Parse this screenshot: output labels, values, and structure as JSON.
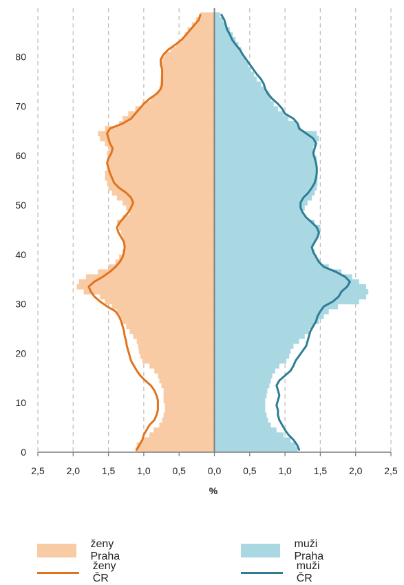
{
  "chart_data": {
    "type": "population-pyramid",
    "xlabel": "%",
    "x_ticks": [
      "2,5",
      "2,0",
      "1,5",
      "1,0",
      "0,5",
      "0,0",
      "0,5",
      "1,0",
      "1,5",
      "2,0",
      "2,5"
    ],
    "y_ticks": [
      "0",
      "10",
      "20",
      "30",
      "40",
      "50",
      "60",
      "70",
      "80"
    ],
    "xlim": [
      -2.5,
      2.5
    ],
    "ylim": [
      0,
      89
    ],
    "grid": "vertical dashed",
    "legend_position": "bottom",
    "colors": {
      "zeny_praha": "#f9cba5",
      "muzi_praha": "#a9d8e3",
      "zeny_cr": "#e0741e",
      "muzi_cr": "#2d7e94",
      "axis": "#7f7f7f",
      "grid": "#bfbfbf"
    },
    "series": [
      {
        "name": "ženy Praha",
        "kind": "bars",
        "side": "left",
        "age": [
          0,
          1,
          2,
          3,
          4,
          5,
          6,
          7,
          8,
          9,
          10,
          11,
          12,
          13,
          14,
          15,
          16,
          17,
          18,
          19,
          20,
          21,
          22,
          23,
          24,
          25,
          26,
          27,
          28,
          29,
          30,
          31,
          32,
          33,
          34,
          35,
          36,
          37,
          38,
          39,
          40,
          41,
          42,
          43,
          44,
          45,
          46,
          47,
          48,
          49,
          50,
          51,
          52,
          53,
          54,
          55,
          56,
          57,
          58,
          59,
          60,
          61,
          62,
          63,
          64,
          65,
          66,
          67,
          68,
          69,
          70,
          71,
          72,
          73,
          74,
          75,
          76,
          77,
          78,
          79,
          80,
          81,
          82,
          83,
          84,
          85,
          86,
          87,
          88
        ],
        "values": [
          1.12,
          1.1,
          1.02,
          0.92,
          0.86,
          0.78,
          0.74,
          0.72,
          0.7,
          0.7,
          0.72,
          0.72,
          0.72,
          0.75,
          0.78,
          0.8,
          0.85,
          0.92,
          1.02,
          1.05,
          1.07,
          1.08,
          1.1,
          1.15,
          1.2,
          1.25,
          1.3,
          1.33,
          1.38,
          1.45,
          1.55,
          1.62,
          1.85,
          1.95,
          1.92,
          1.82,
          1.65,
          1.5,
          1.4,
          1.35,
          1.3,
          1.28,
          1.28,
          1.3,
          1.32,
          1.35,
          1.38,
          1.3,
          1.2,
          1.25,
          1.3,
          1.38,
          1.45,
          1.5,
          1.52,
          1.55,
          1.55,
          1.52,
          1.52,
          1.5,
          1.52,
          1.5,
          1.55,
          1.62,
          1.65,
          1.55,
          1.35,
          1.3,
          1.22,
          1.12,
          1.02,
          0.9,
          0.82,
          0.78,
          0.77,
          0.76,
          0.75,
          0.75,
          0.76,
          0.74,
          0.7,
          0.62,
          0.54,
          0.46,
          0.42,
          0.38,
          0.32,
          0.26,
          0.2
        ]
      },
      {
        "name": "muži Praha",
        "kind": "bars",
        "side": "right",
        "age": [
          0,
          1,
          2,
          3,
          4,
          5,
          6,
          7,
          8,
          9,
          10,
          11,
          12,
          13,
          14,
          15,
          16,
          17,
          18,
          19,
          20,
          21,
          22,
          23,
          24,
          25,
          26,
          27,
          28,
          29,
          30,
          31,
          32,
          33,
          34,
          35,
          36,
          37,
          38,
          39,
          40,
          41,
          42,
          43,
          44,
          45,
          46,
          47,
          48,
          49,
          50,
          51,
          52,
          53,
          54,
          55,
          56,
          57,
          58,
          59,
          60,
          61,
          62,
          63,
          64,
          65,
          66,
          67,
          68,
          69,
          70,
          71,
          72,
          73,
          74,
          75,
          76,
          77,
          78,
          79,
          80,
          81,
          82,
          83,
          84,
          85,
          86,
          87,
          88
        ],
        "values": [
          1.18,
          1.15,
          1.08,
          0.98,
          0.88,
          0.8,
          0.76,
          0.74,
          0.72,
          0.72,
          0.72,
          0.74,
          0.75,
          0.78,
          0.8,
          0.82,
          0.86,
          0.92,
          1.02,
          1.06,
          1.08,
          1.12,
          1.2,
          1.28,
          1.34,
          1.4,
          1.48,
          1.55,
          1.62,
          1.75,
          2.05,
          2.15,
          2.18,
          2.15,
          2.05,
          1.95,
          1.8,
          1.62,
          1.5,
          1.45,
          1.42,
          1.4,
          1.42,
          1.45,
          1.5,
          1.5,
          1.42,
          1.3,
          1.25,
          1.28,
          1.32,
          1.38,
          1.42,
          1.45,
          1.46,
          1.46,
          1.45,
          1.45,
          1.44,
          1.45,
          1.42,
          1.4,
          1.45,
          1.48,
          1.45,
          1.22,
          1.18,
          1.05,
          0.98,
          0.9,
          0.84,
          0.8,
          0.78,
          0.72,
          0.66,
          0.6,
          0.56,
          0.52,
          0.48,
          0.44,
          0.4,
          0.38,
          0.34,
          0.3,
          0.26,
          0.22,
          0.17,
          0.12,
          0.08
        ]
      },
      {
        "name": "ženy ČR",
        "kind": "line",
        "side": "left",
        "points": [
          [
            0,
            1.1
          ],
          [
            1,
            1.06
          ],
          [
            2,
            1.02
          ],
          [
            3,
            1.0
          ],
          [
            4,
            0.96
          ],
          [
            5,
            0.92
          ],
          [
            6,
            0.85
          ],
          [
            7,
            0.82
          ],
          [
            8,
            0.8
          ],
          [
            9,
            0.8
          ],
          [
            10,
            0.8
          ],
          [
            11,
            0.82
          ],
          [
            12,
            0.85
          ],
          [
            13,
            0.9
          ],
          [
            14,
            0.98
          ],
          [
            15,
            1.05
          ],
          [
            16,
            1.1
          ],
          [
            17,
            1.14
          ],
          [
            18,
            1.18
          ],
          [
            19,
            1.2
          ],
          [
            20,
            1.22
          ],
          [
            21,
            1.24
          ],
          [
            22,
            1.25
          ],
          [
            23,
            1.27
          ],
          [
            24,
            1.28
          ],
          [
            25,
            1.3
          ],
          [
            26,
            1.32
          ],
          [
            27,
            1.35
          ],
          [
            28,
            1.4
          ],
          [
            29,
            1.52
          ],
          [
            30,
            1.62
          ],
          [
            31,
            1.7
          ],
          [
            32,
            1.75
          ],
          [
            33,
            1.78
          ],
          [
            34,
            1.7
          ],
          [
            35,
            1.58
          ],
          [
            36,
            1.48
          ],
          [
            37,
            1.4
          ],
          [
            38,
            1.34
          ],
          [
            39,
            1.3
          ],
          [
            40,
            1.28
          ],
          [
            41,
            1.27
          ],
          [
            42,
            1.28
          ],
          [
            43,
            1.32
          ],
          [
            44,
            1.36
          ],
          [
            45,
            1.38
          ],
          [
            46,
            1.34
          ],
          [
            47,
            1.28
          ],
          [
            48,
            1.22
          ],
          [
            49,
            1.18
          ],
          [
            50,
            1.15
          ],
          [
            51,
            1.18
          ],
          [
            52,
            1.25
          ],
          [
            53,
            1.35
          ],
          [
            54,
            1.42
          ],
          [
            55,
            1.45
          ],
          [
            56,
            1.48
          ],
          [
            57,
            1.5
          ],
          [
            58,
            1.52
          ],
          [
            59,
            1.5
          ],
          [
            60,
            1.46
          ],
          [
            61,
            1.44
          ],
          [
            62,
            1.48
          ],
          [
            63,
            1.5
          ],
          [
            64,
            1.52
          ],
          [
            65,
            1.48
          ],
          [
            66,
            1.3
          ],
          [
            67,
            1.18
          ],
          [
            68,
            1.12
          ],
          [
            69,
            1.06
          ],
          [
            70,
            1.0
          ],
          [
            71,
            0.92
          ],
          [
            72,
            0.82
          ],
          [
            73,
            0.76
          ],
          [
            74,
            0.74
          ],
          [
            75,
            0.74
          ],
          [
            76,
            0.74
          ],
          [
            77,
            0.74
          ],
          [
            78,
            0.76
          ],
          [
            79,
            0.76
          ],
          [
            80,
            0.72
          ],
          [
            81,
            0.65
          ],
          [
            82,
            0.55
          ],
          [
            83,
            0.46
          ],
          [
            84,
            0.4
          ],
          [
            85,
            0.34
          ],
          [
            86,
            0.28
          ],
          [
            87,
            0.22
          ],
          [
            88,
            0.2
          ]
        ]
      },
      {
        "name": "muži ČR",
        "kind": "line",
        "side": "right",
        "points": [
          [
            0,
            1.2
          ],
          [
            1,
            1.17
          ],
          [
            2,
            1.12
          ],
          [
            3,
            1.05
          ],
          [
            4,
            1.0
          ],
          [
            5,
            0.96
          ],
          [
            6,
            0.92
          ],
          [
            7,
            0.9
          ],
          [
            8,
            0.9
          ],
          [
            9,
            0.88
          ],
          [
            10,
            0.9
          ],
          [
            11,
            0.92
          ],
          [
            12,
            0.9
          ],
          [
            13,
            0.88
          ],
          [
            14,
            0.92
          ],
          [
            15,
            1.0
          ],
          [
            16,
            1.08
          ],
          [
            17,
            1.12
          ],
          [
            18,
            1.15
          ],
          [
            19,
            1.2
          ],
          [
            20,
            1.25
          ],
          [
            21,
            1.3
          ],
          [
            22,
            1.32
          ],
          [
            23,
            1.34
          ],
          [
            24,
            1.36
          ],
          [
            25,
            1.4
          ],
          [
            26,
            1.44
          ],
          [
            27,
            1.46
          ],
          [
            28,
            1.5
          ],
          [
            29,
            1.55
          ],
          [
            30,
            1.68
          ],
          [
            31,
            1.76
          ],
          [
            32,
            1.8
          ],
          [
            33,
            1.88
          ],
          [
            34,
            1.92
          ],
          [
            35,
            1.85
          ],
          [
            36,
            1.72
          ],
          [
            37,
            1.55
          ],
          [
            38,
            1.48
          ],
          [
            39,
            1.44
          ],
          [
            40,
            1.4
          ],
          [
            41,
            1.38
          ],
          [
            42,
            1.42
          ],
          [
            43,
            1.46
          ],
          [
            44,
            1.48
          ],
          [
            45,
            1.45
          ],
          [
            46,
            1.38
          ],
          [
            47,
            1.3
          ],
          [
            48,
            1.25
          ],
          [
            49,
            1.22
          ],
          [
            50,
            1.22
          ],
          [
            51,
            1.26
          ],
          [
            52,
            1.33
          ],
          [
            53,
            1.38
          ],
          [
            54,
            1.42
          ],
          [
            55,
            1.44
          ],
          [
            56,
            1.45
          ],
          [
            57,
            1.45
          ],
          [
            58,
            1.44
          ],
          [
            59,
            1.42
          ],
          [
            60,
            1.4
          ],
          [
            61,
            1.42
          ],
          [
            62,
            1.44
          ],
          [
            63,
            1.4
          ],
          [
            64,
            1.3
          ],
          [
            65,
            1.2
          ],
          [
            66,
            1.18
          ],
          [
            67,
            1.12
          ],
          [
            68,
            1.0
          ],
          [
            69,
            0.96
          ],
          [
            70,
            0.9
          ],
          [
            71,
            0.82
          ],
          [
            72,
            0.76
          ],
          [
            73,
            0.72
          ],
          [
            74,
            0.7
          ],
          [
            75,
            0.66
          ],
          [
            76,
            0.6
          ],
          [
            77,
            0.55
          ],
          [
            78,
            0.5
          ],
          [
            79,
            0.45
          ],
          [
            80,
            0.4
          ],
          [
            81,
            0.36
          ],
          [
            82,
            0.3
          ],
          [
            83,
            0.25
          ],
          [
            84,
            0.22
          ],
          [
            85,
            0.18
          ],
          [
            86,
            0.16
          ],
          [
            87,
            0.14
          ],
          [
            88,
            0.1
          ]
        ]
      }
    ]
  },
  "legend": {
    "zeny_praha": "ženy Praha",
    "muzi_praha": "muži Praha",
    "zeny_cr": "ženy ČR",
    "muzi_cr": "muži ČR"
  }
}
